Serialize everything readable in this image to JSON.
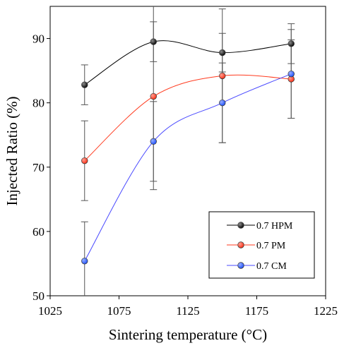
{
  "chart_data": {
    "type": "line",
    "title": "",
    "xlabel": "Sintering temperature (°C)",
    "ylabel": "Injected Ratio (%)",
    "xlim": [
      1025,
      1225
    ],
    "ylim": [
      50,
      95
    ],
    "x_ticks": [
      "1025",
      "1075",
      "1125",
      "1175",
      "1225"
    ],
    "y_ticks": [
      "50",
      "60",
      "70",
      "80",
      "90"
    ],
    "grid": false,
    "legend_position": "bottom-right",
    "x": [
      1050,
      1100,
      1150,
      1200
    ],
    "series": [
      {
        "name": "0.7 HPM",
        "color": "#000000",
        "marker_color": "#000000",
        "values": [
          82.8,
          89.5,
          87.8,
          89.2
        ],
        "error": [
          3.1,
          3.1,
          3.0,
          3.1
        ]
      },
      {
        "name": "0.7 PM",
        "color": "#ff3b1f",
        "marker_color": "#ff2a0f",
        "values": [
          71.0,
          81.0,
          84.2,
          83.7
        ],
        "error": [
          6.2,
          14.5,
          10.4,
          6.1
        ]
      },
      {
        "name": "0.7 CM",
        "color": "#4a4aff",
        "marker_color": "#1a4dff",
        "values": [
          55.4,
          74.0,
          80.0,
          84.5
        ],
        "error": [
          6.1,
          6.2,
          6.2,
          6.9
        ]
      }
    ]
  }
}
